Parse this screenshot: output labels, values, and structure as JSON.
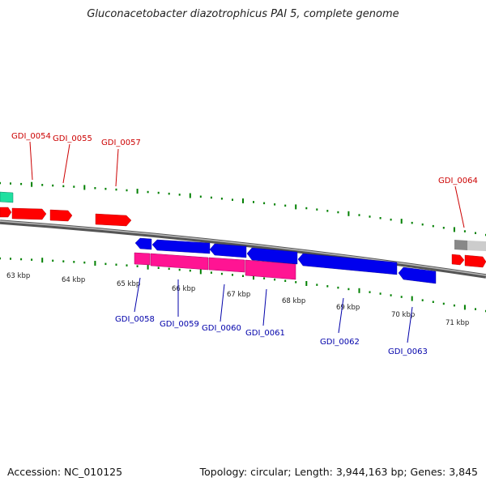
{
  "title": "Gluconacetobacter diazotrophicus PAI 5, complete genome",
  "footer": {
    "accession": "Accession: NC_010125",
    "topology": "Topology: circular; Length: 3,944,163 bp; Genes: 3,845"
  },
  "colors": {
    "forward_gene": "#ff0000",
    "reverse_gene": "#0000ee",
    "rna_gene": "#ff1493",
    "other_feature": "#20e0a0",
    "grey_feature": "#888888",
    "tick": "#008000",
    "backbone": "#7a7a7a",
    "forward_label": "#cc0000",
    "reverse_label": "#0000aa"
  },
  "scale_ticks": [
    {
      "label": "63 kbp"
    },
    {
      "label": "64 kbp"
    },
    {
      "label": "65 kbp"
    },
    {
      "label": "66 kbp"
    },
    {
      "label": "67 kbp"
    },
    {
      "label": "68 kbp"
    },
    {
      "label": "69 kbp"
    },
    {
      "label": "70 kbp"
    },
    {
      "label": "71 kbp"
    }
  ],
  "forward_labels": [
    {
      "label": "GDI_0054"
    },
    {
      "label": "GDI_0055"
    },
    {
      "label": "GDI_0057"
    },
    {
      "label": "GDI_0064"
    }
  ],
  "reverse_labels": [
    {
      "label": "GDI_0058"
    },
    {
      "label": "GDI_0059"
    },
    {
      "label": "GDI_0060"
    },
    {
      "label": "GDI_0061"
    },
    {
      "label": "GDI_0062"
    },
    {
      "label": "GDI_0063"
    }
  ]
}
